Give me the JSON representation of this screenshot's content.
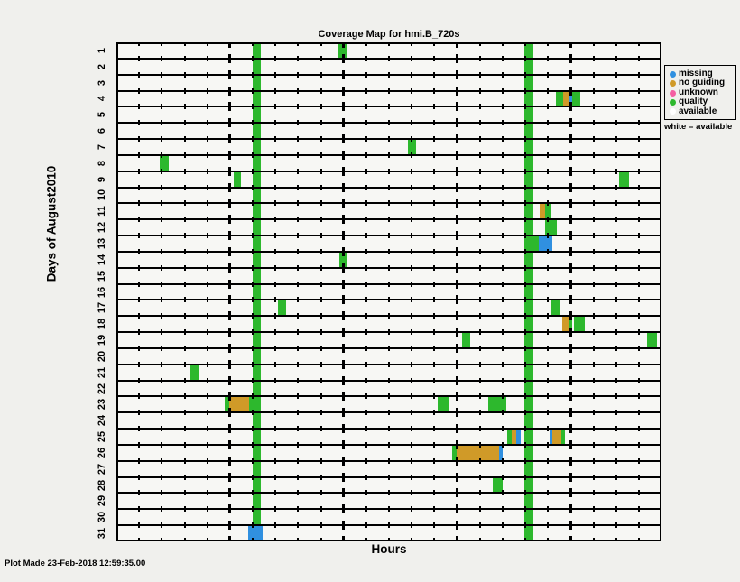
{
  "title": "Coverage Map for hmi.B_720s",
  "xlabel": "Hours",
  "ylabel": "Days of August2010",
  "footer": "Plot Made 23-Feb-2018 12:59:35.00",
  "legend": {
    "entries": [
      {
        "label": "missing",
        "color": "#3090e0"
      },
      {
        "label": "no guiding",
        "color": "#d09a28"
      },
      {
        "label": "unknown",
        "color": "#f45fa2"
      },
      {
        "label": "quality",
        "color": "#2db82d"
      },
      {
        "label": "available",
        "color": "#ffffff"
      }
    ],
    "note": "white = available"
  },
  "chart_data": {
    "type": "heatmap",
    "title": "Coverage Map for hmi.B_720s",
    "xlabel": "Hours",
    "ylabel": "Days of August2010",
    "x_range_hours": [
      0,
      24
    ],
    "minor_tick_every_hours": 1,
    "major_ticks_hours": [
      5,
      10,
      15,
      20
    ],
    "grid": "horizontal line per day with hourly ticks",
    "legend_position": "outside-right",
    "days": [
      "1",
      "2",
      "3",
      "4",
      "5",
      "6",
      "7",
      "8",
      "9",
      "10",
      "11",
      "12",
      "13",
      "14",
      "15",
      "16",
      "17",
      "18",
      "19",
      "20",
      "21",
      "22",
      "23",
      "24",
      "25",
      "26",
      "27",
      "28",
      "29",
      "30",
      "31"
    ],
    "status_colors": {
      "missing": "#3090e0",
      "no_guiding": "#d09a28",
      "unknown": "#f45fa2",
      "quality": "#2db82d",
      "available": "#ffffff"
    },
    "daily_bands": [
      {
        "day_first": 1,
        "day_last": 30,
        "start_hour": 5.99,
        "end_hour": 6.37,
        "status": "quality"
      },
      {
        "day_first": 1,
        "day_last": 31,
        "start_hour": 17.97,
        "end_hour": 18.37,
        "status": "quality"
      }
    ],
    "blocks": [
      {
        "day": 1,
        "start_hour": 9.76,
        "end_hour": 10.12,
        "status": "quality"
      },
      {
        "day": 4,
        "start_hour": 19.35,
        "end_hour": 19.67,
        "status": "quality"
      },
      {
        "day": 4,
        "start_hour": 19.67,
        "end_hour": 19.92,
        "status": "no_guiding"
      },
      {
        "day": 4,
        "start_hour": 19.92,
        "end_hour": 20.06,
        "status": "missing"
      },
      {
        "day": 4,
        "start_hour": 20.06,
        "end_hour": 20.42,
        "status": "quality"
      },
      {
        "day": 7,
        "start_hour": 12.82,
        "end_hour": 13.18,
        "status": "quality"
      },
      {
        "day": 8,
        "start_hour": 1.91,
        "end_hour": 2.29,
        "status": "quality"
      },
      {
        "day": 9,
        "start_hour": 5.15,
        "end_hour": 5.47,
        "status": "quality"
      },
      {
        "day": 9,
        "start_hour": 22.13,
        "end_hour": 22.57,
        "status": "quality"
      },
      {
        "day": 11,
        "start_hour": 18.65,
        "end_hour": 18.89,
        "status": "no_guiding"
      },
      {
        "day": 11,
        "start_hour": 18.89,
        "end_hour": 19.15,
        "status": "quality"
      },
      {
        "day": 12,
        "start_hour": 18.87,
        "end_hour": 19.39,
        "status": "quality"
      },
      {
        "day": 13,
        "start_hour": 18.37,
        "end_hour": 18.61,
        "status": "quality"
      },
      {
        "day": 13,
        "start_hour": 18.61,
        "end_hour": 19.19,
        "status": "missing"
      },
      {
        "day": 14,
        "start_hour": 9.8,
        "end_hour": 10.14,
        "status": "quality"
      },
      {
        "day": 17,
        "start_hour": 7.12,
        "end_hour": 7.48,
        "status": "quality"
      },
      {
        "day": 17,
        "start_hour": 19.15,
        "end_hour": 19.53,
        "status": "quality"
      },
      {
        "day": 18,
        "start_hour": 19.63,
        "end_hour": 19.9,
        "status": "no_guiding"
      },
      {
        "day": 18,
        "start_hour": 19.9,
        "end_hour": 20.06,
        "status": "quality"
      },
      {
        "day": 18,
        "start_hour": 20.16,
        "end_hour": 20.62,
        "status": "quality"
      },
      {
        "day": 19,
        "start_hour": 15.21,
        "end_hour": 15.59,
        "status": "quality"
      },
      {
        "day": 19,
        "start_hour": 23.36,
        "end_hour": 23.82,
        "status": "quality"
      },
      {
        "day": 21,
        "start_hour": 3.2,
        "end_hour": 3.64,
        "status": "quality"
      },
      {
        "day": 23,
        "start_hour": 4.75,
        "end_hour": 4.97,
        "status": "quality"
      },
      {
        "day": 23,
        "start_hour": 4.97,
        "end_hour": 5.83,
        "status": "no_guiding"
      },
      {
        "day": 23,
        "start_hour": 5.83,
        "end_hour": 6.37,
        "status": "quality"
      },
      {
        "day": 23,
        "start_hour": 14.14,
        "end_hour": 14.61,
        "status": "quality"
      },
      {
        "day": 23,
        "start_hour": 16.36,
        "end_hour": 17.16,
        "status": "quality"
      },
      {
        "day": 25,
        "start_hour": 17.2,
        "end_hour": 17.4,
        "status": "quality"
      },
      {
        "day": 25,
        "start_hour": 17.4,
        "end_hour": 17.6,
        "status": "no_guiding"
      },
      {
        "day": 25,
        "start_hour": 17.6,
        "end_hour": 17.82,
        "status": "missing"
      },
      {
        "day": 25,
        "start_hour": 19.1,
        "end_hour": 19.19,
        "status": "missing"
      },
      {
        "day": 25,
        "start_hour": 19.19,
        "end_hour": 19.58,
        "status": "no_guiding"
      },
      {
        "day": 25,
        "start_hour": 19.58,
        "end_hour": 19.76,
        "status": "quality"
      },
      {
        "day": 26,
        "start_hour": 14.77,
        "end_hour": 14.97,
        "status": "quality"
      },
      {
        "day": 26,
        "start_hour": 14.97,
        "end_hour": 16.84,
        "status": "no_guiding"
      },
      {
        "day": 26,
        "start_hour": 16.84,
        "end_hour": 17.0,
        "status": "missing"
      },
      {
        "day": 28,
        "start_hour": 16.56,
        "end_hour": 17.0,
        "status": "quality"
      },
      {
        "day": 31,
        "start_hour": 5.8,
        "end_hour": 6.45,
        "status": "missing"
      }
    ]
  }
}
